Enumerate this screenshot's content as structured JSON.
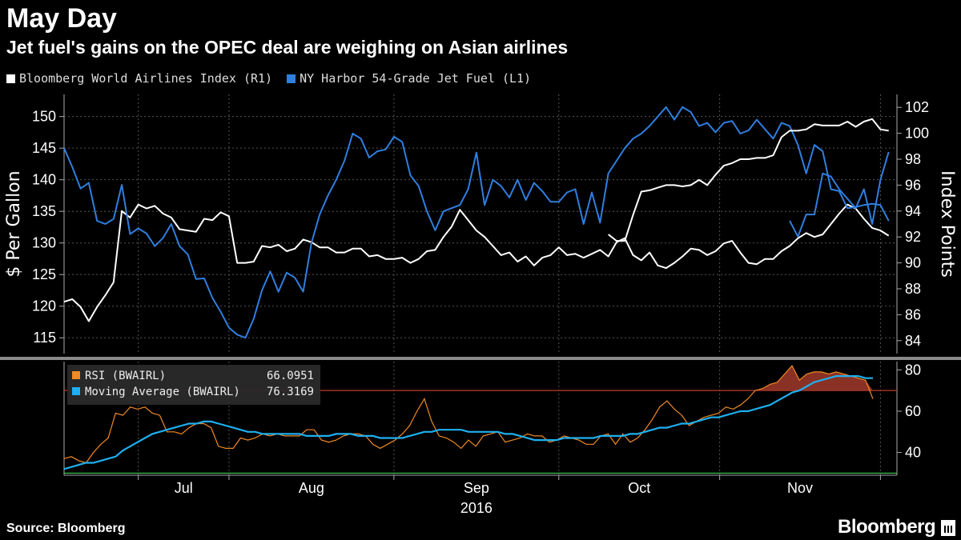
{
  "title": "May Day",
  "subtitle": "Jet fuel's gains on the OPEC deal are weighing on Asian airlines",
  "legend": [
    {
      "label": "Bloomberg World Airlines Index (R1)",
      "color": "#ffffff"
    },
    {
      "label": "NY Harbor 54-Grade Jet Fuel (L1)",
      "color": "#2f7fe0"
    }
  ],
  "source": "Source: Bloomberg",
  "brand": "Bloomberg",
  "chart_data": [
    {
      "type": "line",
      "y_left_label": "$ Per Gallon",
      "y_right_label": "Index Points",
      "y_left_ticks": [
        115,
        120,
        125,
        130,
        135,
        140,
        145,
        150
      ],
      "y_left_range": [
        112.5,
        153.5
      ],
      "y_right_ticks": [
        84,
        86,
        88,
        90,
        92,
        94,
        96,
        98,
        100,
        102
      ],
      "y_right_range": [
        83,
        103
      ],
      "x_tick_labels": [
        "Jul",
        "Aug",
        "Sep",
        "Oct",
        "Nov"
      ],
      "x_year_label": "2016",
      "x_range": [
        0,
        101
      ],
      "month_boundaries": [
        9,
        20,
        40,
        60,
        79.5,
        99
      ],
      "grid": true,
      "series": [
        {
          "name": "Bloomberg World Airlines Index (R1)",
          "axis": "right",
          "color": "#ffffff",
          "values": [
            87.0,
            87.2,
            86.6,
            85.5,
            86.6,
            87.5,
            88.5,
            94.0,
            93.5,
            94.5,
            94.2,
            94.4,
            93.8,
            93.5,
            92.6,
            92.5,
            92.4,
            93.4,
            93.3,
            93.9,
            93.6,
            90.0,
            90.0,
            90.1,
            91.3,
            91.2,
            91.4,
            90.9,
            91.1,
            91.8,
            91.6,
            91.2,
            91.2,
            90.8,
            90.8,
            91.1,
            91.1,
            90.5,
            90.6,
            90.3,
            90.3,
            90.4,
            90.0,
            90.3,
            90.9,
            91.0,
            92.0,
            92.8,
            94.1,
            93.3,
            92.5,
            92.0,
            91.3,
            90.6,
            90.8,
            90.1,
            90.5,
            89.8,
            90.4,
            90.6,
            91.2,
            90.6,
            90.7,
            90.4,
            90.7,
            91.0,
            90.5,
            91.6,
            91.9,
            90.6,
            90.2,
            90.8,
            89.8,
            89.6,
            90.0,
            90.5,
            91.1,
            91.0,
            90.6,
            90.9,
            91.5,
            91.7,
            90.8,
            90.0,
            89.9,
            90.3,
            90.3,
            90.9,
            91.3,
            91.9,
            92.3,
            92.0,
            92.2,
            93.0,
            93.8,
            94.5,
            94.2,
            93.4,
            92.7,
            92.5,
            92.1
          ]
        },
        {
          "name": "NY Harbor 54-Grade Jet Fuel (L1)",
          "axis": "left",
          "color": "#2f7fe0",
          "values": [
            145.0,
            142.0,
            138.6,
            139.5,
            133.5,
            133.0,
            133.8,
            139.2,
            131.4,
            132.3,
            131.5,
            129.5,
            130.8,
            133.0,
            129.5,
            128.2,
            124.3,
            124.4,
            121.3,
            119.1,
            116.6,
            115.5,
            115.0,
            118.0,
            122.5,
            125.5,
            122.3,
            125.3,
            124.5,
            122.3,
            130.0,
            134.5,
            137.5,
            140.0,
            143.0,
            147.3,
            146.5,
            143.5,
            144.5,
            144.8,
            146.8,
            146.0,
            140.7,
            139.0,
            135.0,
            132.0,
            135.0,
            135.5,
            136.0,
            138.5,
            144.3,
            136.0,
            140.0,
            139.0,
            137.2,
            140.0,
            136.8,
            139.5,
            138.2,
            136.5,
            136.5,
            138.0,
            138.5,
            133.0,
            138.0,
            133.2,
            141.0,
            143.0,
            145.0,
            146.5,
            147.3,
            148.5,
            150.0,
            151.5,
            149.5,
            151.5,
            150.7,
            148.5,
            149.0,
            147.5,
            149.0,
            149.3,
            147.3,
            147.8,
            149.5,
            148.0,
            146.5,
            149.0,
            148.5,
            145.5,
            141.0,
            145.5,
            144.5,
            138.5,
            138.2,
            135.5,
            135.7,
            136.0,
            136.2,
            136.0,
            133.5
          ]
        },
        {
          "name": "",
          "axis": "right",
          "color": "#ffffff",
          "values": [
            92.2,
            91.7,
            91.7,
            93.7,
            95.5,
            95.6,
            95.8,
            96.0,
            96.0,
            95.9,
            96.0,
            96.4,
            96.0,
            96.8,
            97.5,
            97.7,
            98.0,
            98.0,
            98.1,
            98.1,
            98.3,
            99.7,
            100.2,
            100.2,
            100.3,
            100.7,
            100.6,
            100.6,
            100.6,
            100.9,
            100.5,
            100.9,
            101.1,
            100.3,
            100.2
          ]
        },
        {
          "name": "",
          "axis": "left",
          "color": "#2f7fe0",
          "values": [
            133.5,
            131.0,
            134.5,
            134.5,
            141.0,
            140.5,
            138.5,
            137.0,
            135.5,
            138.5,
            133.0,
            140.0,
            144.4
          ]
        }
      ]
    },
    {
      "type": "line",
      "y_ticks": [
        40,
        60,
        80
      ],
      "y_range": [
        29,
        84
      ],
      "threshold_lines": [
        {
          "value": 70,
          "color": "#c0392b"
        },
        {
          "value": 30,
          "color": "#39d353"
        }
      ],
      "legend_box": [
        {
          "label": "RSI (BWAIRL)",
          "value": "66.0951",
          "color": "#f08a24"
        },
        {
          "label": "Moving Average (BWAIRL)",
          "value": "76.3169",
          "color": "#1eb0f0"
        }
      ],
      "series": [
        {
          "name": "RSI (BWAIRL)",
          "color": "#f08a24",
          "values": [
            37,
            38,
            36,
            35,
            40,
            44,
            47,
            59,
            58,
            62,
            61,
            62,
            59,
            58,
            50,
            50,
            49,
            52,
            54,
            54,
            52,
            43,
            42,
            42,
            47,
            46,
            47,
            49,
            48,
            49,
            48,
            48,
            48,
            51,
            51,
            46,
            45,
            46,
            48,
            49,
            49,
            48,
            44,
            42,
            44,
            46,
            49,
            53,
            60,
            66,
            55,
            48,
            47,
            45,
            42,
            46,
            43,
            48,
            49,
            50,
            45,
            46,
            47,
            49,
            48,
            48,
            45,
            46,
            48,
            47,
            46,
            44,
            44,
            48,
            49,
            44,
            49,
            45,
            47,
            51,
            56,
            62,
            65,
            61,
            58,
            53,
            55,
            57,
            58,
            59,
            62,
            61,
            63,
            66,
            70,
            71,
            73,
            74,
            78,
            82,
            75,
            78,
            79,
            79,
            78,
            79,
            78,
            77,
            76,
            75,
            66
          ]
        },
        {
          "name": "Moving Average (BWAIRL)",
          "color": "#1eb0f0",
          "values": [
            32,
            33,
            34,
            35,
            35,
            36,
            37,
            38,
            41,
            43,
            45,
            47,
            49,
            50,
            51,
            52,
            53,
            54,
            54,
            55,
            55,
            54,
            53,
            52,
            51,
            50,
            50,
            49,
            49,
            49,
            49,
            49,
            49,
            48,
            48,
            48,
            48,
            49,
            49,
            49,
            48,
            48,
            48,
            47,
            47,
            47,
            47,
            48,
            49,
            50,
            50,
            51,
            51,
            51,
            51,
            50,
            50,
            50,
            50,
            50,
            49,
            49,
            48,
            47,
            46,
            46,
            46,
            46,
            47,
            47,
            47,
            47,
            47,
            48,
            48,
            48,
            48,
            49,
            49,
            50,
            51,
            52,
            52,
            53,
            54,
            54,
            55,
            56,
            57,
            57,
            58,
            59,
            60,
            60,
            61,
            62,
            63,
            65,
            67,
            69,
            70,
            72,
            74,
            75,
            76,
            77,
            77,
            77,
            77,
            76,
            76
          ]
        }
      ]
    }
  ]
}
